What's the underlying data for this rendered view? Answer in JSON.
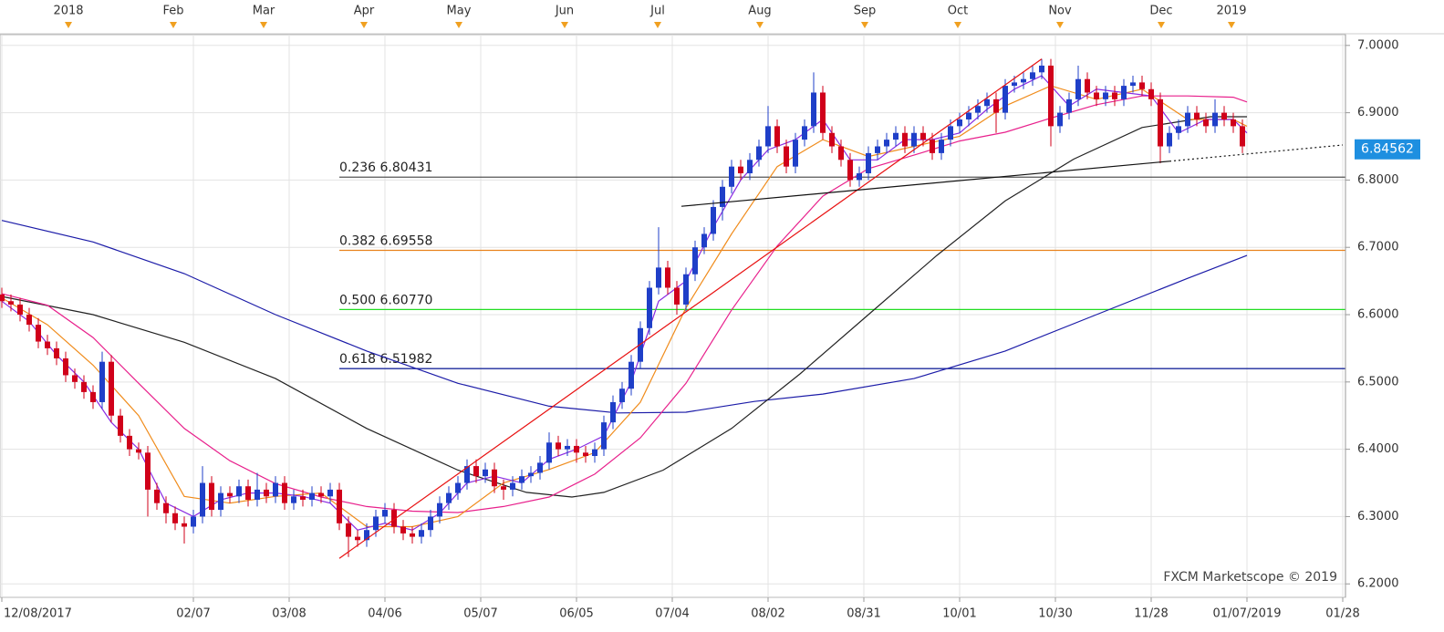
{
  "chart_data": {
    "type": "candlestick",
    "xlim": [
      -0.4,
      294.6
    ],
    "ylim": [
      6.18,
      7.016
    ],
    "grid": true,
    "yticks": [
      {
        "value": 7.0,
        "label": "7.0000"
      },
      {
        "value": 6.9,
        "label": "6.9000"
      },
      {
        "value": 6.8,
        "label": "6.8000"
      },
      {
        "value": 6.7,
        "label": "6.7000"
      },
      {
        "value": 6.6,
        "label": "6.6000"
      },
      {
        "value": 6.5,
        "label": "6.5000"
      },
      {
        "value": 6.4,
        "label": "6.4000"
      },
      {
        "value": 6.3,
        "label": "6.3000"
      },
      {
        "value": 6.2,
        "label": "6.2000"
      }
    ],
    "xticks": [
      {
        "value": 0,
        "label": "12/08/2017"
      },
      {
        "value": 42,
        "label": "02/07"
      },
      {
        "value": 63,
        "label": "03/08"
      },
      {
        "value": 84,
        "label": "04/06"
      },
      {
        "value": 105,
        "label": "05/07"
      },
      {
        "value": 126,
        "label": "06/05"
      },
      {
        "value": 147,
        "label": "07/04"
      },
      {
        "value": 168,
        "label": "08/02"
      },
      {
        "value": 189,
        "label": "08/31"
      },
      {
        "value": 210,
        "label": "10/01"
      },
      {
        "value": 231,
        "label": "10/30"
      },
      {
        "value": 252,
        "label": "11/28"
      },
      {
        "value": 273,
        "label": "01/07/2019"
      },
      {
        "value": 294,
        "label": "01/28"
      }
    ],
    "top_ticks": [
      {
        "value": 14.6,
        "label": "2018"
      },
      {
        "value": 37.6,
        "label": "Feb"
      },
      {
        "value": 57.4,
        "label": "Mar"
      },
      {
        "value": 79.4,
        "label": "Apr"
      },
      {
        "value": 100.2,
        "label": "May"
      },
      {
        "value": 123.4,
        "label": "Jun"
      },
      {
        "value": 143.8,
        "label": "Jul"
      },
      {
        "value": 166.2,
        "label": "Aug"
      },
      {
        "value": 189.2,
        "label": "Sep"
      },
      {
        "value": 209.6,
        "label": "Oct"
      },
      {
        "value": 232,
        "label": "Nov"
      },
      {
        "value": 254.2,
        "label": "Dec"
      },
      {
        "value": 269.6,
        "label": "2019"
      }
    ],
    "candles": {
      "up_color": "#1f3fc8",
      "down_color": "#d0001a",
      "x": [
        0,
        2,
        4,
        6,
        8,
        10,
        12,
        14,
        16,
        18,
        20,
        22,
        24,
        26,
        28,
        30,
        32,
        34,
        36,
        38,
        40,
        42,
        44,
        46,
        48,
        50,
        52,
        54,
        56,
        58,
        60,
        62,
        64,
        66,
        68,
        70,
        72,
        74,
        76,
        78,
        80,
        82,
        84,
        86,
        88,
        90,
        92,
        94,
        96,
        98,
        100,
        102,
        104,
        106,
        108,
        110,
        112,
        114,
        116,
        118,
        120,
        122,
        124,
        126,
        128,
        130,
        132,
        134,
        136,
        138,
        140,
        142,
        144,
        146,
        148,
        150,
        152,
        154,
        156,
        158,
        160,
        162,
        164,
        166,
        168,
        170,
        172,
        174,
        176,
        178,
        180,
        182,
        184,
        186,
        188,
        190,
        192,
        194,
        196,
        198,
        200,
        202,
        204,
        206,
        208,
        210,
        212,
        214,
        216,
        218,
        220,
        222,
        224,
        226,
        228,
        230,
        232,
        234,
        236,
        238,
        240,
        242,
        244,
        246,
        248,
        250,
        252,
        254,
        256,
        258,
        260,
        262,
        264,
        266,
        268,
        270,
        272
      ],
      "open": [
        6.63,
        6.62,
        6.615,
        6.6,
        6.585,
        6.56,
        6.55,
        6.535,
        6.51,
        6.5,
        6.485,
        6.47,
        6.53,
        6.45,
        6.42,
        6.4,
        6.395,
        6.34,
        6.32,
        6.305,
        6.29,
        6.285,
        6.3,
        6.35,
        6.31,
        6.335,
        6.33,
        6.345,
        6.325,
        6.34,
        6.33,
        6.35,
        6.32,
        6.33,
        6.325,
        6.335,
        6.33,
        6.34,
        6.29,
        6.27,
        6.265,
        6.28,
        6.3,
        6.31,
        6.285,
        6.275,
        6.27,
        6.28,
        6.3,
        6.32,
        6.335,
        6.35,
        6.375,
        6.36,
        6.37,
        6.345,
        6.34,
        6.35,
        6.36,
        6.365,
        6.38,
        6.41,
        6.4,
        6.405,
        6.395,
        6.39,
        6.4,
        6.44,
        6.47,
        6.49,
        6.53,
        6.58,
        6.64,
        6.67,
        6.64,
        6.615,
        6.66,
        6.7,
        6.72,
        6.76,
        6.79,
        6.82,
        6.81,
        6.83,
        6.85,
        6.88,
        6.85,
        6.82,
        6.86,
        6.88,
        6.93,
        6.87,
        6.85,
        6.83,
        6.8,
        6.81,
        6.84,
        6.85,
        6.86,
        6.87,
        6.85,
        6.87,
        6.86,
        6.84,
        6.86,
        6.88,
        6.89,
        6.9,
        6.91,
        6.92,
        6.9,
        6.94,
        6.945,
        6.95,
        6.96,
        6.97,
        6.88,
        6.9,
        6.92,
        6.95,
        6.93,
        6.92,
        6.93,
        6.92,
        6.94,
        6.945,
        6.935,
        6.92,
        6.85,
        6.87,
        6.88,
        6.9,
        6.89,
        6.88,
        6.9,
        6.89,
        6.88
      ],
      "high": [
        6.64,
        6.63,
        6.625,
        6.61,
        6.595,
        6.57,
        6.56,
        6.545,
        6.52,
        6.51,
        6.495,
        6.545,
        6.54,
        6.46,
        6.43,
        6.41,
        6.405,
        6.35,
        6.33,
        6.315,
        6.3,
        6.31,
        6.375,
        6.36,
        6.345,
        6.345,
        6.355,
        6.355,
        6.365,
        6.35,
        6.36,
        6.36,
        6.34,
        6.34,
        6.345,
        6.345,
        6.35,
        6.35,
        6.3,
        6.28,
        6.29,
        6.31,
        6.32,
        6.32,
        6.295,
        6.285,
        6.29,
        6.31,
        6.33,
        6.345,
        6.36,
        6.385,
        6.385,
        6.38,
        6.38,
        6.355,
        6.36,
        6.37,
        6.375,
        6.39,
        6.425,
        6.42,
        6.415,
        6.415,
        6.405,
        6.41,
        6.45,
        6.48,
        6.5,
        6.54,
        6.59,
        6.65,
        6.73,
        6.68,
        6.65,
        6.67,
        6.71,
        6.73,
        6.77,
        6.8,
        6.83,
        6.83,
        6.84,
        6.86,
        6.91,
        6.89,
        6.86,
        6.87,
        6.89,
        6.96,
        6.94,
        6.88,
        6.86,
        6.84,
        6.82,
        6.85,
        6.86,
        6.87,
        6.88,
        6.88,
        6.88,
        6.88,
        6.87,
        6.87,
        6.89,
        6.9,
        6.91,
        6.92,
        6.93,
        6.93,
        6.95,
        6.955,
        6.96,
        6.97,
        6.98,
        6.98,
        6.91,
        6.93,
        6.97,
        6.96,
        6.94,
        6.94,
        6.94,
        6.95,
        6.955,
        6.955,
        6.945,
        6.93,
        6.88,
        6.89,
        6.91,
        6.91,
        6.9,
        6.92,
        6.91,
        6.9,
        6.89
      ],
      "low": [
        6.61,
        6.605,
        6.59,
        6.575,
        6.55,
        6.54,
        6.525,
        6.5,
        6.49,
        6.475,
        6.46,
        6.46,
        6.44,
        6.41,
        6.39,
        6.385,
        6.3,
        6.31,
        6.29,
        6.28,
        6.26,
        6.275,
        6.29,
        6.3,
        6.3,
        6.32,
        6.32,
        6.315,
        6.315,
        6.32,
        6.32,
        6.31,
        6.31,
        6.315,
        6.315,
        6.32,
        6.32,
        6.28,
        6.24,
        6.255,
        6.255,
        6.27,
        6.29,
        6.275,
        6.265,
        6.26,
        6.26,
        6.27,
        6.29,
        6.31,
        6.325,
        6.34,
        6.35,
        6.35,
        6.335,
        6.325,
        6.33,
        6.34,
        6.35,
        6.355,
        6.37,
        6.39,
        6.39,
        6.38,
        6.38,
        6.38,
        6.39,
        6.43,
        6.46,
        6.48,
        6.52,
        6.57,
        6.63,
        6.63,
        6.6,
        6.605,
        6.65,
        6.69,
        6.71,
        6.74,
        6.78,
        6.8,
        6.8,
        6.82,
        6.84,
        6.84,
        6.81,
        6.81,
        6.85,
        6.87,
        6.86,
        6.84,
        6.82,
        6.79,
        6.79,
        6.8,
        6.83,
        6.84,
        6.85,
        6.84,
        6.84,
        6.85,
        6.83,
        6.83,
        6.85,
        6.87,
        6.88,
        6.89,
        6.9,
        6.87,
        6.89,
        6.93,
        6.935,
        6.94,
        6.95,
        6.85,
        6.87,
        6.89,
        6.91,
        6.92,
        6.91,
        6.91,
        6.91,
        6.91,
        6.93,
        6.925,
        6.91,
        6.825,
        6.84,
        6.86,
        6.87,
        6.88,
        6.87,
        6.87,
        6.88,
        6.87,
        6.84
      ],
      "close": [
        6.62,
        6.615,
        6.6,
        6.585,
        6.56,
        6.55,
        6.535,
        6.51,
        6.5,
        6.485,
        6.47,
        6.53,
        6.45,
        6.42,
        6.4,
        6.395,
        6.34,
        6.32,
        6.305,
        6.29,
        6.285,
        6.3,
        6.35,
        6.31,
        6.335,
        6.33,
        6.345,
        6.325,
        6.34,
        6.33,
        6.35,
        6.32,
        6.33,
        6.325,
        6.335,
        6.33,
        6.34,
        6.29,
        6.27,
        6.265,
        6.28,
        6.3,
        6.31,
        6.285,
        6.275,
        6.27,
        6.28,
        6.3,
        6.32,
        6.335,
        6.35,
        6.375,
        6.36,
        6.37,
        6.345,
        6.34,
        6.35,
        6.36,
        6.365,
        6.38,
        6.41,
        6.4,
        6.405,
        6.395,
        6.39,
        6.4,
        6.44,
        6.47,
        6.49,
        6.53,
        6.58,
        6.64,
        6.67,
        6.64,
        6.615,
        6.66,
        6.7,
        6.72,
        6.76,
        6.79,
        6.82,
        6.81,
        6.83,
        6.85,
        6.88,
        6.85,
        6.82,
        6.86,
        6.88,
        6.93,
        6.87,
        6.85,
        6.83,
        6.8,
        6.81,
        6.84,
        6.85,
        6.86,
        6.87,
        6.85,
        6.87,
        6.86,
        6.84,
        6.86,
        6.88,
        6.89,
        6.9,
        6.91,
        6.92,
        6.9,
        6.94,
        6.945,
        6.95,
        6.96,
        6.97,
        6.88,
        6.9,
        6.92,
        6.95,
        6.93,
        6.92,
        6.93,
        6.92,
        6.94,
        6.945,
        6.935,
        6.92,
        6.85,
        6.87,
        6.88,
        6.9,
        6.89,
        6.88,
        6.9,
        6.89,
        6.88,
        6.85
      ]
    },
    "series": [
      {
        "color": "#1c1ca8",
        "x": [
          0,
          20,
          40,
          60,
          80,
          100,
          120,
          135,
          150,
          165,
          180,
          200,
          220,
          240,
          260,
          273
        ],
        "values": [
          6.74,
          6.708,
          6.661,
          6.6,
          6.546,
          6.498,
          6.464,
          6.454,
          6.455,
          6.471,
          6.482,
          6.505,
          6.546,
          6.6,
          6.654,
          6.688
        ]
      },
      {
        "color": "#222222",
        "x": [
          0,
          20,
          40,
          60,
          80,
          100,
          115,
          125,
          132,
          145,
          160,
          175,
          190,
          205,
          220,
          235,
          250,
          265,
          273
        ],
        "values": [
          6.627,
          6.6,
          6.559,
          6.505,
          6.431,
          6.369,
          6.336,
          6.329,
          6.336,
          6.369,
          6.431,
          6.512,
          6.6,
          6.688,
          6.769,
          6.831,
          6.878,
          6.894,
          6.894
        ]
      },
      {
        "color": "#e8208c",
        "x": [
          0,
          10,
          20,
          30,
          40,
          50,
          60,
          70,
          80,
          90,
          100,
          110,
          120,
          130,
          140,
          150,
          160,
          170,
          180,
          190,
          200,
          210,
          220,
          230,
          240,
          250,
          260,
          270,
          273
        ],
        "values": [
          6.631,
          6.614,
          6.566,
          6.498,
          6.431,
          6.383,
          6.349,
          6.329,
          6.315,
          6.308,
          6.306,
          6.315,
          6.329,
          6.363,
          6.417,
          6.498,
          6.607,
          6.702,
          6.776,
          6.817,
          6.837,
          6.858,
          6.871,
          6.892,
          6.912,
          6.925,
          6.925,
          6.923,
          6.916
        ]
      },
      {
        "color": "#f08c1c",
        "x": [
          0,
          10,
          20,
          30,
          40,
          50,
          60,
          70,
          80,
          90,
          100,
          110,
          120,
          130,
          140,
          150,
          160,
          170,
          180,
          190,
          200,
          210,
          220,
          230,
          240,
          250,
          260,
          270,
          273
        ],
        "values": [
          6.625,
          6.585,
          6.525,
          6.45,
          6.33,
          6.32,
          6.33,
          6.335,
          6.285,
          6.285,
          6.3,
          6.35,
          6.37,
          6.395,
          6.47,
          6.61,
          6.72,
          6.82,
          6.86,
          6.835,
          6.85,
          6.865,
          6.91,
          6.94,
          6.92,
          6.935,
          6.89,
          6.89,
          6.88
        ]
      },
      {
        "color": "#8a2be2",
        "x": [
          0,
          6,
          12,
          18,
          24,
          30,
          36,
          42,
          48,
          54,
          60,
          66,
          72,
          78,
          84,
          90,
          96,
          102,
          108,
          114,
          120,
          126,
          132,
          138,
          144,
          150,
          156,
          162,
          168,
          174,
          180,
          186,
          192,
          198,
          204,
          210,
          216,
          222,
          228,
          234,
          240,
          246,
          252,
          258,
          264,
          270,
          273
        ],
        "values": [
          6.62,
          6.59,
          6.54,
          6.5,
          6.44,
          6.4,
          6.32,
          6.3,
          6.325,
          6.335,
          6.335,
          6.33,
          6.32,
          6.28,
          6.29,
          6.28,
          6.305,
          6.35,
          6.36,
          6.35,
          6.385,
          6.4,
          6.42,
          6.5,
          6.62,
          6.65,
          6.73,
          6.8,
          6.845,
          6.86,
          6.89,
          6.83,
          6.83,
          6.86,
          6.86,
          6.87,
          6.905,
          6.935,
          6.955,
          6.91,
          6.935,
          6.93,
          6.925,
          6.87,
          6.89,
          6.89,
          6.87
        ]
      }
    ],
    "trend_lines": [
      {
        "color": "#e81010",
        "style": "solid",
        "x": [
          74,
          228
        ],
        "values": [
          6.238,
          6.98
        ]
      },
      {
        "color": "#111111",
        "style": "solid",
        "x": [
          149,
          256
        ],
        "values": [
          6.761,
          6.828
        ]
      },
      {
        "color": "#111111",
        "style": "dotted",
        "x": [
          256,
          294
        ],
        "values": [
          6.828,
          6.852
        ]
      }
    ],
    "fib_levels": [
      {
        "value": 6.80431,
        "label": "0.236 6.80431",
        "color": "#555555"
      },
      {
        "value": 6.69558,
        "label": "0.382 6.69558",
        "color": "#e8821c"
      },
      {
        "value": 6.6077,
        "label": "0.500 6.60770",
        "color": "#22dd22"
      },
      {
        "value": 6.51982,
        "label": "0.618 6.51982",
        "color": "#1c2a9c"
      }
    ],
    "fib_start": 74,
    "last_price": 6.84562,
    "last_price_color": "#1e8fe0",
    "watermark": "FXCM Marketscope © 2019"
  }
}
